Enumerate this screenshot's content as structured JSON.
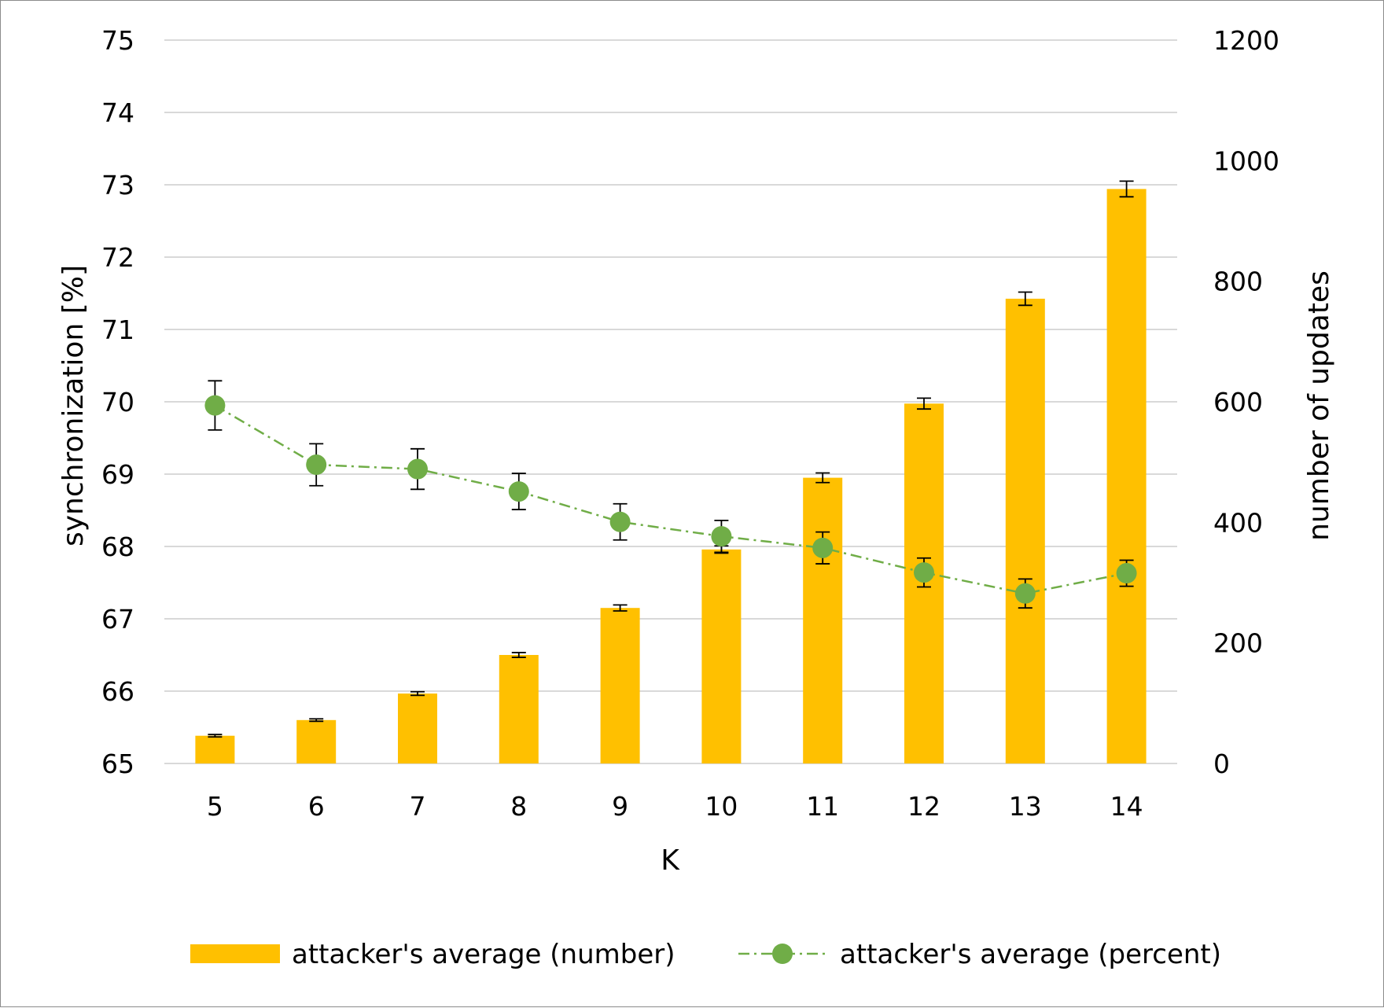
{
  "chart_data": {
    "type": "bar",
    "categories": [
      "5",
      "6",
      "7",
      "8",
      "9",
      "10",
      "11",
      "12",
      "13",
      "14"
    ],
    "xlabel": "K",
    "y_left": {
      "label": "synchronization [%]",
      "ylim": [
        65,
        75
      ],
      "ticks": [
        "65",
        "66",
        "67",
        "68",
        "69",
        "70",
        "71",
        "72",
        "73",
        "74",
        "75"
      ]
    },
    "y_right": {
      "label": "number of updates",
      "ylim": [
        0,
        1200
      ],
      "ticks": [
        "0",
        "200",
        "400",
        "600",
        "800",
        "1000",
        "1200"
      ]
    },
    "series": [
      {
        "name": "attacker's average (number)",
        "kind": "bar",
        "axis": "right",
        "color": "#FFC000",
        "values": [
          46,
          72,
          116,
          180,
          258,
          355,
          474,
          597,
          771,
          953
        ],
        "error": [
          2,
          2,
          3,
          4,
          5,
          6,
          8,
          9,
          11,
          13
        ]
      },
      {
        "name": "attacker's average (percent)",
        "kind": "line",
        "axis": "left",
        "color": "#70AD47",
        "line_style": "dash-dot",
        "values": [
          69.95,
          69.13,
          69.07,
          68.76,
          68.34,
          68.14,
          67.98,
          67.64,
          67.35,
          67.63
        ],
        "error": [
          0.34,
          0.29,
          0.28,
          0.25,
          0.25,
          0.22,
          0.22,
          0.2,
          0.2,
          0.18
        ]
      }
    ],
    "grid": true,
    "legend_position": "bottom"
  }
}
